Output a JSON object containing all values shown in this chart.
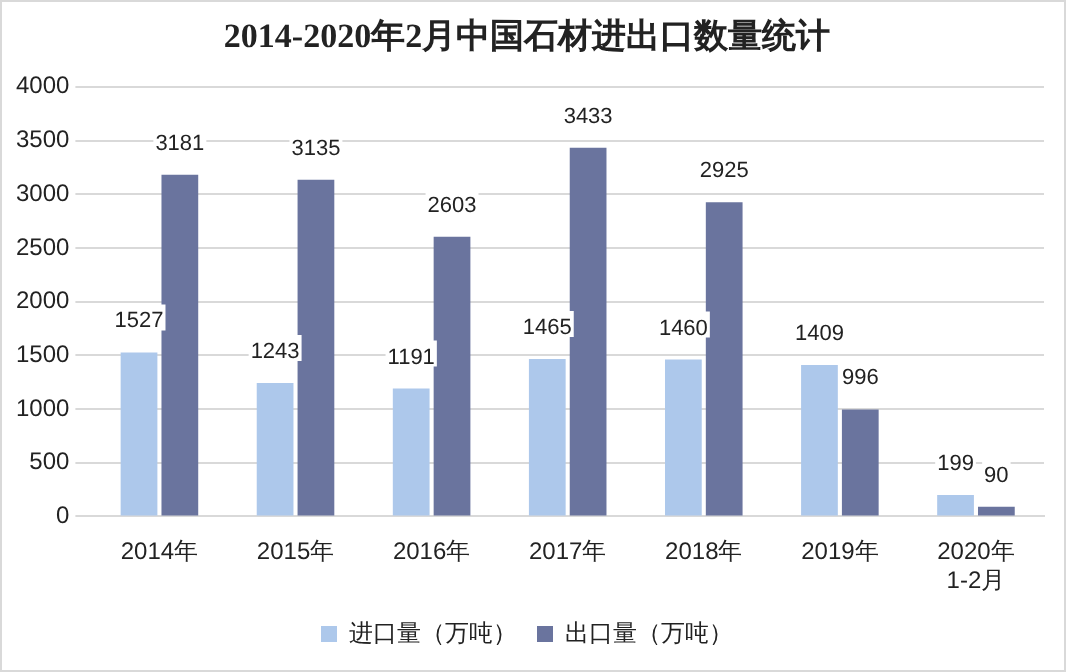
{
  "chart_data": {
    "type": "bar",
    "title": "2014-2020年2月中国石材进出口数量统计",
    "categories": [
      "2014年",
      "2015年",
      "2016年",
      "2017年",
      "2018年",
      "2019年",
      "2020年\n1-2月"
    ],
    "series": [
      {
        "name": "进口量（万吨）",
        "color": "#adc8eb",
        "values": [
          1527,
          1243,
          1191,
          1465,
          1460,
          1409,
          199
        ]
      },
      {
        "name": "出口量（万吨）",
        "color": "#6a749e",
        "values": [
          3181,
          3135,
          2603,
          3433,
          2925,
          996,
          90
        ]
      }
    ],
    "ylim": [
      0,
      4000
    ],
    "yticks": [
      0,
      500,
      1000,
      1500,
      2000,
      2500,
      3000,
      3500,
      4000
    ],
    "grid": "y",
    "legend": "bottom",
    "data_labels": true
  }
}
